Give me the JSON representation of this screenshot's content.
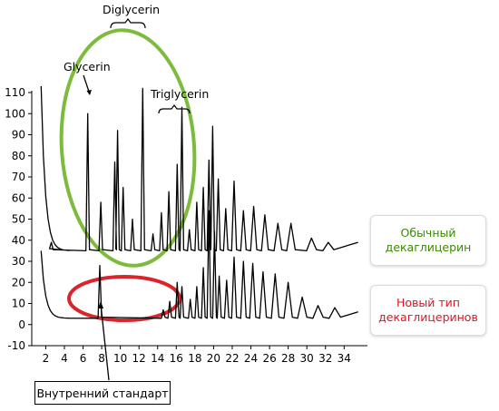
{
  "chart_data": {
    "type": "line",
    "title": "",
    "xlabel": "",
    "ylabel": "",
    "xlim": [
      0.5,
      36.5
    ],
    "ylim": [
      -10,
      115
    ],
    "x_ticks": [
      2,
      4,
      6,
      8,
      10,
      12,
      14,
      16,
      18,
      20,
      22,
      24,
      26,
      28,
      30,
      32,
      34
    ],
    "y_ticks": [
      -10,
      0,
      10,
      20,
      30,
      40,
      50,
      60,
      70,
      80,
      90,
      100,
      110
    ],
    "grid": false,
    "series": [
      {
        "name": "Обычный декаглицерин",
        "color": "#000000",
        "baseline": 35,
        "start_peak": {
          "x": 1.5,
          "y": 113
        },
        "peaks": [
          [
            2.6,
            39
          ],
          [
            6.5,
            100
          ],
          [
            7.9,
            58
          ],
          [
            9.4,
            77
          ],
          [
            9.7,
            92
          ],
          [
            10.3,
            65
          ],
          [
            11.3,
            50
          ],
          [
            12.4,
            112
          ],
          [
            13.5,
            43
          ],
          [
            14.4,
            53
          ],
          [
            15.2,
            63
          ],
          [
            16.1,
            76
          ],
          [
            16.6,
            103
          ],
          [
            17.4,
            45
          ],
          [
            18.2,
            58
          ],
          [
            18.9,
            65
          ],
          [
            19.5,
            78
          ],
          [
            19.9,
            94
          ],
          [
            20.5,
            69
          ],
          [
            21.3,
            55
          ],
          [
            22.2,
            68
          ],
          [
            23.2,
            54
          ],
          [
            24.3,
            56
          ],
          [
            25.5,
            52
          ],
          [
            26.9,
            48
          ],
          [
            28.3,
            48
          ],
          [
            30.5,
            41
          ],
          [
            32.3,
            39
          ]
        ],
        "end_y": 39
      },
      {
        "name": "Новый тип декаглицеринов",
        "color": "#000000",
        "baseline": 3,
        "start_peak": {
          "x": 1.5,
          "y": 35
        },
        "peaks": [
          [
            7.8,
            28
          ],
          [
            14.6,
            7
          ],
          [
            15.3,
            11
          ],
          [
            16.1,
            20
          ],
          [
            16.6,
            18
          ],
          [
            17.5,
            12
          ],
          [
            18.2,
            18
          ],
          [
            18.9,
            27
          ],
          [
            19.5,
            54
          ],
          [
            20.1,
            44
          ],
          [
            20.6,
            23
          ],
          [
            21.4,
            21
          ],
          [
            22.2,
            32
          ],
          [
            23.2,
            30
          ],
          [
            24.2,
            29
          ],
          [
            25.3,
            25
          ],
          [
            26.6,
            24
          ],
          [
            28.0,
            20
          ],
          [
            29.5,
            13
          ],
          [
            31.2,
            9
          ],
          [
            33.0,
            8
          ]
        ],
        "end_y": 6
      }
    ],
    "annotations": {
      "glycerin": "Glycerin",
      "diglycerin": "Diglycerin",
      "triglycerin": "Triglycerin",
      "internal_standard": "Внутренний стандарт"
    },
    "legend": {
      "regular_line1": "Обычный",
      "regular_line2": "декаглицерин",
      "regular_color": "#3a8a00",
      "new_line1": "Новый тип",
      "new_line2": "декаглицеринов",
      "new_color": "#e0141e"
    },
    "highlight_colors": {
      "green_ellipse": "#7dbb3c",
      "red_ellipse": "#d9252c"
    }
  }
}
